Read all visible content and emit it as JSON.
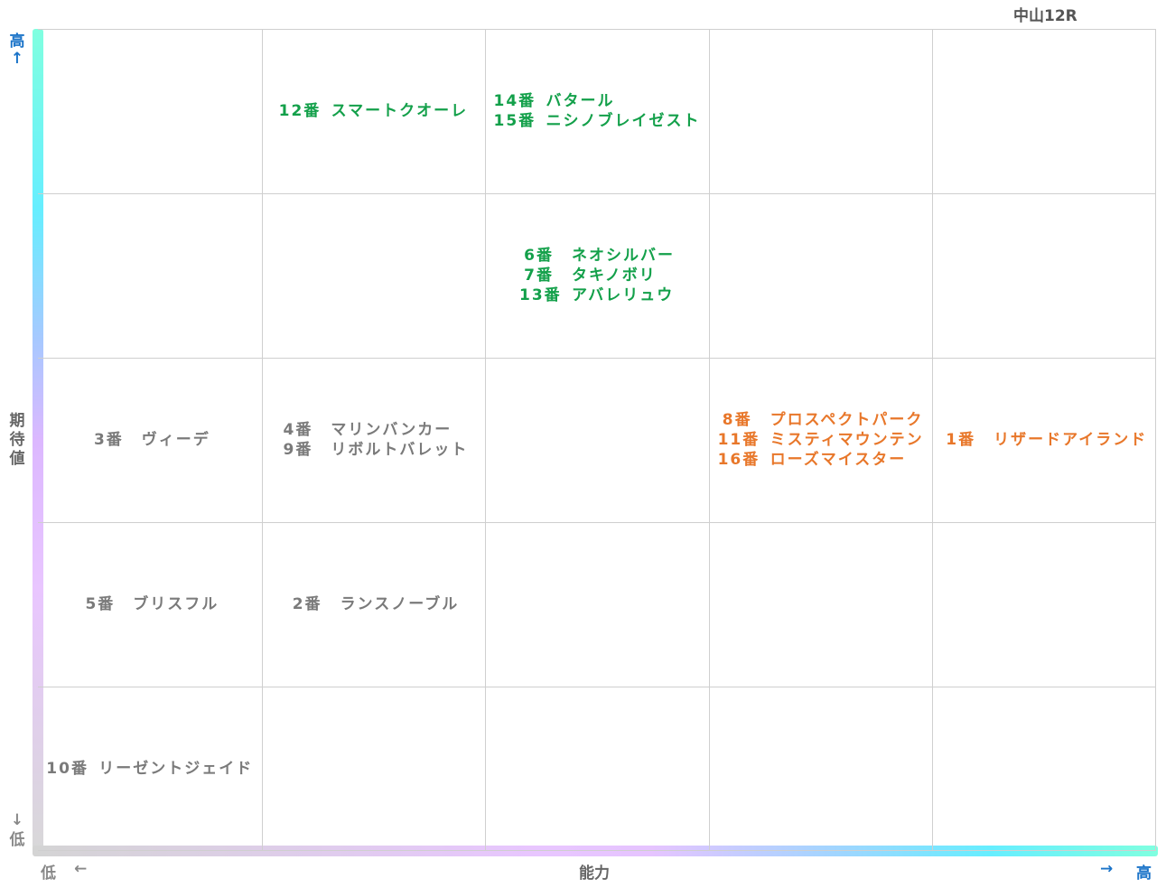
{
  "race_label": "中山12R",
  "axes": {
    "y_title": "期待値",
    "y_high": "高",
    "y_high_arrow": "↑",
    "y_low": "低",
    "y_low_arrow": "↓",
    "x_title": "能力",
    "x_low": "低",
    "x_low_arrow": "←",
    "x_high": "高",
    "x_high_arrow": "→"
  },
  "colors": {
    "green": "#13a04a",
    "orange": "#e8772a",
    "gray": "#7a7a7a",
    "axis_blue": "#1a73c8"
  },
  "chart_data": {
    "type": "table",
    "rows": 5,
    "cols": 5,
    "x_label": "能力",
    "y_label": "期待値",
    "cells": [
      {
        "row": 0,
        "col": 1,
        "color": "green",
        "horses": [
          {
            "num": "12番",
            "name": "スマートクオーレ"
          }
        ]
      },
      {
        "row": 0,
        "col": 2,
        "color": "green",
        "horses": [
          {
            "num": "14番",
            "name": "バタール"
          },
          {
            "num": "15番",
            "name": "ニシノブレイゼスト"
          }
        ]
      },
      {
        "row": 1,
        "col": 2,
        "color": "green",
        "horses": [
          {
            "num": "6番",
            "name": "ネオシルバー"
          },
          {
            "num": "7番",
            "name": "タキノボリ"
          },
          {
            "num": "13番",
            "name": "アバレリュウ"
          }
        ]
      },
      {
        "row": 2,
        "col": 0,
        "color": "gray",
        "horses": [
          {
            "num": "3番",
            "name": "ヴィーデ"
          }
        ]
      },
      {
        "row": 2,
        "col": 1,
        "color": "gray",
        "horses": [
          {
            "num": "4番",
            "name": "マリンバンカー"
          },
          {
            "num": "9番",
            "name": "リボルトバレット"
          }
        ]
      },
      {
        "row": 2,
        "col": 3,
        "color": "orange",
        "horses": [
          {
            "num": "8番",
            "name": "プロスペクトパーク"
          },
          {
            "num": "11番",
            "name": "ミスティマウンテン"
          },
          {
            "num": "16番",
            "name": "ローズマイスター"
          }
        ]
      },
      {
        "row": 2,
        "col": 4,
        "color": "orange",
        "horses": [
          {
            "num": "1番",
            "name": "リザードアイランド"
          }
        ]
      },
      {
        "row": 3,
        "col": 0,
        "color": "gray",
        "horses": [
          {
            "num": "5番",
            "name": "ブリスフル"
          }
        ]
      },
      {
        "row": 3,
        "col": 1,
        "color": "gray",
        "horses": [
          {
            "num": "2番",
            "name": "ランスノーブル"
          }
        ]
      },
      {
        "row": 4,
        "col": 0,
        "color": "gray",
        "horses": [
          {
            "num": "10番",
            "name": "リーゼントジェイド"
          }
        ]
      }
    ]
  }
}
